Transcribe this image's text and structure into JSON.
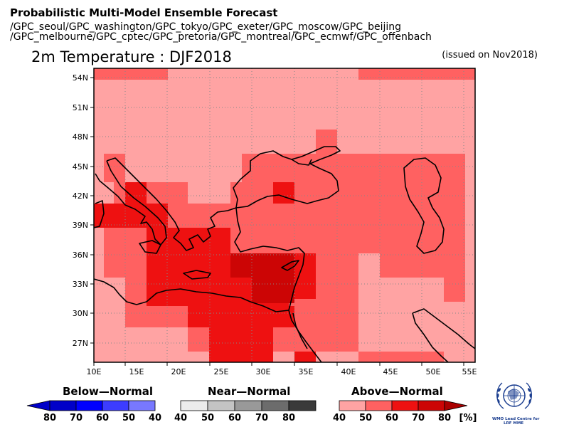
{
  "header": {
    "title": "Probabilistic Multi-Model Ensemble Forecast",
    "centers_line1": "/GPC_seoul/GPC_washington/GPC_tokyo/GPC_exeter/GPC_moscow/GPC_beijing",
    "centers_line2": "/GPC_melbourne/GPC_cptec/GPC_pretoria/GPC_montreal/GPC_ecmwf/GPC_offenbach"
  },
  "map": {
    "title": "2m Temperature : DJF2018",
    "issued": "(issued on Nov2018)",
    "lon_range": [
      10,
      55
    ],
    "lat_range": [
      25,
      55
    ],
    "lat_ticks": [
      "54N",
      "51N",
      "48N",
      "45N",
      "42N",
      "39N",
      "36N",
      "33N",
      "30N",
      "27N"
    ],
    "lon_ticks": [
      "10E",
      "15E",
      "20E",
      "25E",
      "30E",
      "35E",
      "40E",
      "45E",
      "50E",
      "55E"
    ],
    "grid": "dotted",
    "color_levels": {
      "a40": "#ffa3a3",
      "a50": "#ff6161",
      "a60": "#ee1111",
      "a70": "#cc0505"
    }
  },
  "legend": {
    "below_title": "Below—Normal",
    "near_title": "Near—Normal",
    "above_title": "Above—Normal",
    "below_labels": [
      "80",
      "70",
      "60",
      "50",
      "40"
    ],
    "near_labels": [
      "40",
      "50",
      "60",
      "70",
      "80"
    ],
    "above_labels": [
      "40",
      "50",
      "60",
      "70",
      "80"
    ],
    "unit": "[%]",
    "below_colors": [
      "#0000c8",
      "#0000ff",
      "#3c3cff",
      "#7878ff",
      "#a8a8ff"
    ],
    "near_colors": [
      "#ececec",
      "#c4c4c4",
      "#999999",
      "#6c6c6c",
      "#3a3a3a"
    ],
    "above_colors": [
      "#ffa3a3",
      "#ff6161",
      "#ee1111",
      "#cc0505",
      "#aa0000"
    ]
  },
  "logo": {
    "line1": "WMO Lead Centre for",
    "line2": "LRF MME"
  }
}
